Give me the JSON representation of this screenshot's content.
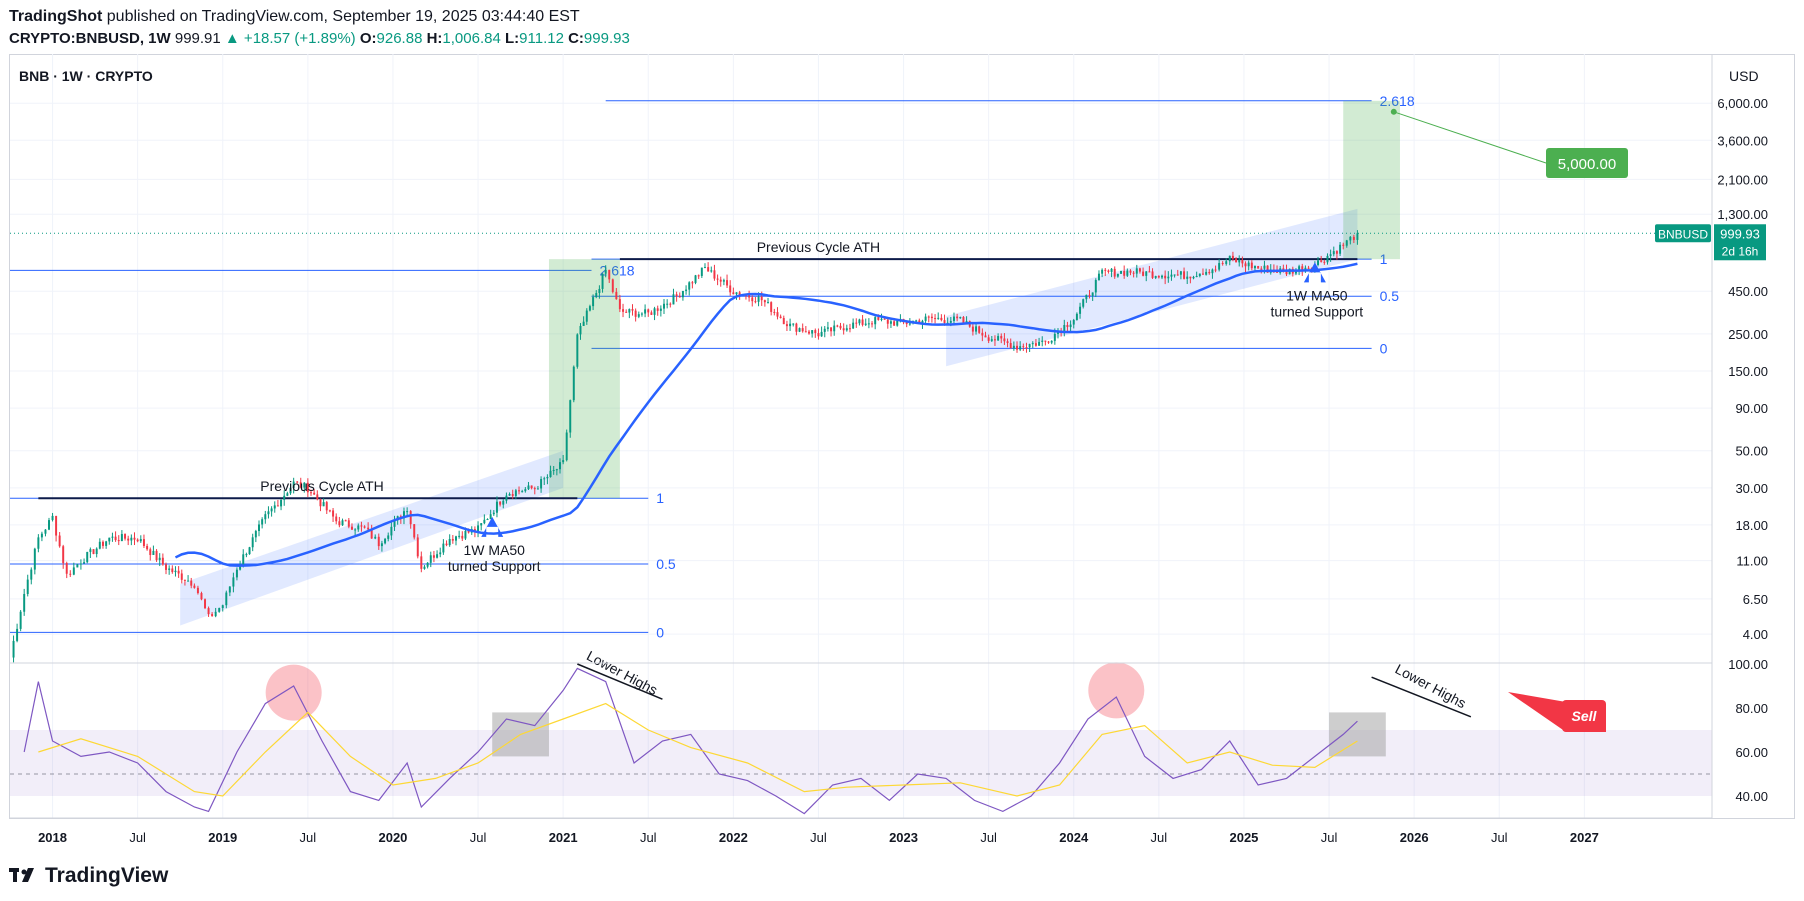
{
  "header": {
    "author": "TradingShot",
    "published_text": "published on TradingView.com, September 19, 2025 03:44:40 EST",
    "symbol": "CRYPTO:BNBUSD, 1W",
    "last_price": "999.91",
    "change_text": "▲ +18.57 (+1.89%)",
    "open_label": "O:",
    "open": "926.88",
    "high_label": "H:",
    "high": "1,006.84",
    "low_label": "L:",
    "low": "911.12",
    "close_label": "C:",
    "close": "999.93"
  },
  "pane_title": "BNB · 1W · CRYPTO",
  "currency": "USD",
  "price_tag": {
    "symbol": "BNBUSD",
    "price": "999.93",
    "countdown": "2d 16h"
  },
  "target_label": "5,000.00",
  "sell_label": "Sell",
  "footer": {
    "brand": "TradingView"
  },
  "colors": {
    "up": "#089981",
    "down": "#f23645",
    "ma": "#2962ff",
    "fib": "#2962ff",
    "rsi": "#7e57c2",
    "rsi_ma": "#fdd835",
    "target": "#4caf50"
  },
  "chart_data": [
    {
      "type": "candlestick",
      "title": "BNB · 1W · CRYPTO",
      "scale": "log",
      "ylim": [
        2.8,
        7000
      ],
      "xlim": [
        "2017-10",
        "2027-10"
      ],
      "y_ticks": [
        "6,000.00",
        "3,600.00",
        "2,100.00",
        "1,300.00",
        "450.00",
        "250.00",
        "150.00",
        "90.00",
        "50.00",
        "30.00",
        "18.00",
        "11.00",
        "6.50",
        "4.00"
      ],
      "x_ticks": [
        "2018",
        "Jul",
        "2019",
        "Jul",
        "2020",
        "Jul",
        "2021",
        "Jul",
        "2022",
        "Jul",
        "2023",
        "Jul",
        "2024",
        "Jul",
        "2025",
        "Jul",
        "2026",
        "Jul",
        "2027"
      ],
      "price_path": [
        [
          "2017-10",
          2.9
        ],
        [
          "2017-11",
          7
        ],
        [
          "2017-12",
          15
        ],
        [
          "2018-01",
          20
        ],
        [
          "2018-02",
          9
        ],
        [
          "2018-03",
          11
        ],
        [
          "2018-05",
          15
        ],
        [
          "2018-07",
          15
        ],
        [
          "2018-09",
          10
        ],
        [
          "2018-11",
          8
        ],
        [
          "2018-12",
          5
        ],
        [
          "2019-01",
          6
        ],
        [
          "2019-02",
          10
        ],
        [
          "2019-04",
          20
        ],
        [
          "2019-06",
          32
        ],
        [
          "2019-07",
          30
        ],
        [
          "2019-09",
          19
        ],
        [
          "2019-11",
          17
        ],
        [
          "2019-12",
          14
        ],
        [
          "2020-02",
          23
        ],
        [
          "2020-03",
          10
        ],
        [
          "2020-05",
          15
        ],
        [
          "2020-07",
          17
        ],
        [
          "2020-09",
          28
        ],
        [
          "2020-11",
          30
        ],
        [
          "2021-01",
          42
        ],
        [
          "2021-02",
          240
        ],
        [
          "2021-04",
          600
        ],
        [
          "2021-05",
          340
        ],
        [
          "2021-07",
          330
        ],
        [
          "2021-09",
          420
        ],
        [
          "2021-11",
          620
        ],
        [
          "2022-01",
          450
        ],
        [
          "2022-03",
          400
        ],
        [
          "2022-05",
          280
        ],
        [
          "2022-07",
          250
        ],
        [
          "2022-09",
          280
        ],
        [
          "2022-11",
          300
        ],
        [
          "2023-01",
          290
        ],
        [
          "2023-03",
          310
        ],
        [
          "2023-05",
          300
        ],
        [
          "2023-07",
          240
        ],
        [
          "2023-09",
          210
        ],
        [
          "2023-11",
          225
        ],
        [
          "2024-01",
          310
        ],
        [
          "2024-03",
          580
        ],
        [
          "2024-05",
          590
        ],
        [
          "2024-07",
          570
        ],
        [
          "2024-09",
          560
        ],
        [
          "2024-11",
          620
        ],
        [
          "2024-12",
          700
        ],
        [
          "2025-02",
          620
        ],
        [
          "2025-04",
          590
        ],
        [
          "2025-06",
          650
        ],
        [
          "2025-08",
          850
        ],
        [
          "2025-09",
          999.93
        ]
      ],
      "ma50_label": "1W MA50",
      "annotations": [
        {
          "text": "Previous Cycle ATH",
          "at": [
            "2019-08",
            26
          ]
        },
        {
          "text": "Previous Cycle ATH",
          "at": [
            "2022-07",
            700
          ]
        },
        {
          "text": "1W MA50",
          "sub": "turned Support",
          "at": [
            "2020-08",
            18
          ]
        },
        {
          "text": "1W MA50",
          "sub": "turned Support",
          "at": [
            "2025-06",
            600
          ]
        }
      ],
      "fib_levels": [
        {
          "label": "2.618",
          "price": 6200
        },
        {
          "label": "1",
          "price": 700
        },
        {
          "label": "0.5",
          "price": 420
        },
        {
          "label": "0",
          "price": 205
        },
        {
          "label": "2.618",
          "price": 600
        },
        {
          "label": "1",
          "price": 26
        },
        {
          "label": "0.5",
          "price": 10.5
        },
        {
          "label": "0",
          "price": 4.1
        }
      ]
    },
    {
      "type": "line",
      "title": "RSI",
      "ylim": [
        30,
        100
      ],
      "y_ticks": [
        "100.00",
        "80.00",
        "60.00",
        "40.00"
      ],
      "band": [
        40,
        70
      ],
      "midline": 50,
      "annotations": [
        "Lower Highs",
        "Lower Highs",
        "Sell"
      ],
      "series": [
        {
          "values": [
            [
              "2017-11",
              60
            ],
            [
              "2017-12",
              92
            ],
            [
              "2018-01",
              65
            ],
            [
              "2018-03",
              58
            ],
            [
              "2018-05",
              60
            ],
            [
              "2018-07",
              55
            ],
            [
              "2018-09",
              42
            ],
            [
              "2018-11",
              35
            ],
            [
              "2018-12",
              33
            ],
            [
              "2019-02",
              60
            ],
            [
              "2019-04",
              82
            ],
            [
              "2019-06",
              90
            ],
            [
              "2019-08",
              65
            ],
            [
              "2019-10",
              42
            ],
            [
              "2019-12",
              38
            ],
            [
              "2020-02",
              55
            ],
            [
              "2020-03",
              35
            ],
            [
              "2020-05",
              48
            ],
            [
              "2020-07",
              60
            ],
            [
              "2020-09",
              75
            ],
            [
              "2020-11",
              72
            ],
            [
              "2021-01",
              88
            ],
            [
              "2021-02",
              98
            ],
            [
              "2021-04",
              92
            ],
            [
              "2021-06",
              55
            ],
            [
              "2021-08",
              65
            ],
            [
              "2021-10",
              68
            ],
            [
              "2021-12",
              50
            ],
            [
              "2022-02",
              47
            ],
            [
              "2022-04",
              40
            ],
            [
              "2022-06",
              32
            ],
            [
              "2022-08",
              45
            ],
            [
              "2022-10",
              48
            ],
            [
              "2022-12",
              38
            ],
            [
              "2023-02",
              50
            ],
            [
              "2023-04",
              48
            ],
            [
              "2023-06",
              38
            ],
            [
              "2023-08",
              33
            ],
            [
              "2023-10",
              40
            ],
            [
              "2023-12",
              55
            ],
            [
              "2024-02",
              75
            ],
            [
              "2024-04",
              85
            ],
            [
              "2024-06",
              58
            ],
            [
              "2024-08",
              48
            ],
            [
              "2024-10",
              52
            ],
            [
              "2024-12",
              65
            ],
            [
              "2025-02",
              45
            ],
            [
              "2025-04",
              48
            ],
            [
              "2025-06",
              58
            ],
            [
              "2025-08",
              68
            ],
            [
              "2025-09",
              74
            ]
          ]
        },
        {
          "values": [
            [
              "2017-12",
              60
            ],
            [
              "2018-03",
              66
            ],
            [
              "2018-07",
              58
            ],
            [
              "2018-11",
              42
            ],
            [
              "2019-01",
              40
            ],
            [
              "2019-04",
              60
            ],
            [
              "2019-07",
              78
            ],
            [
              "2019-10",
              58
            ],
            [
              "2020-01",
              45
            ],
            [
              "2020-04",
              48
            ],
            [
              "2020-07",
              55
            ],
            [
              "2020-10",
              68
            ],
            [
              "2021-01",
              75
            ],
            [
              "2021-04",
              82
            ],
            [
              "2021-07",
              70
            ],
            [
              "2021-10",
              62
            ],
            [
              "2022-02",
              55
            ],
            [
              "2022-06",
              42
            ],
            [
              "2022-09",
              44
            ],
            [
              "2023-01",
              45
            ],
            [
              "2023-05",
              46
            ],
            [
              "2023-09",
              40
            ],
            [
              "2023-12",
              45
            ],
            [
              "2024-03",
              68
            ],
            [
              "2024-06",
              72
            ],
            [
              "2024-09",
              55
            ],
            [
              "2024-12",
              60
            ],
            [
              "2025-03",
              54
            ],
            [
              "2025-06",
              53
            ],
            [
              "2025-09",
              65
            ]
          ]
        }
      ]
    }
  ]
}
